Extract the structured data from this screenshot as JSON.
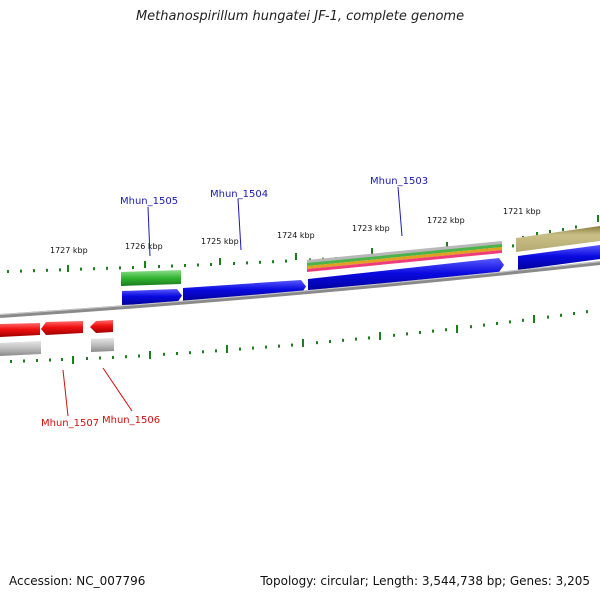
{
  "title": "Methanospirillum hungatei JF-1, complete genome",
  "footer": {
    "accession": "Accession: NC_007796",
    "topology": "Topology: circular; Length: 3,544,738 bp; Genes: 3,205"
  },
  "kbp_ticks": [
    "1727 kbp",
    "1726 kbp",
    "1725 kbp",
    "1724 kbp",
    "1723 kbp",
    "1722 kbp",
    "1721 kbp"
  ],
  "gene_labels": {
    "mhun_1505": "Mhun_1505",
    "mhun_1504": "Mhun_1504",
    "mhun_1503": "Mhun_1503",
    "mhun_1507": "Mhun_1507",
    "mhun_1506": "Mhun_1506"
  },
  "colors": {
    "forward_cds": "#0a0adc",
    "reverse_cds": "#e01010",
    "rna_green": "#32b432",
    "backbone": "#808080",
    "tick": "#1e7d1e",
    "olive": "#bdb37a"
  }
}
